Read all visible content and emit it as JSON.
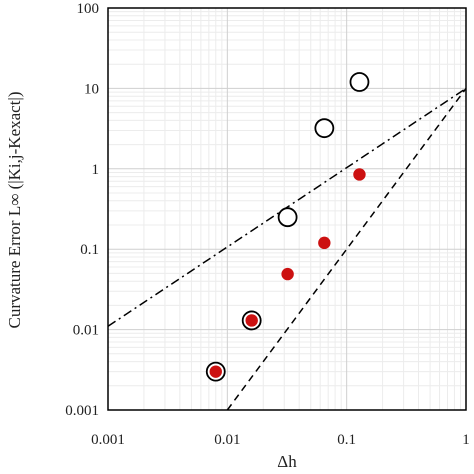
{
  "chart_data": {
    "type": "scatter",
    "title": "",
    "xlabel": "Δh",
    "ylabel": "Curvature Error L∞ (|Ki,j-Kexact|)",
    "xscale": "log",
    "yscale": "log",
    "xlim": [
      0.001,
      1
    ],
    "ylim": [
      0.001,
      100
    ],
    "x_tick_labels": [
      "0.001",
      "0.01",
      "0.1",
      "1"
    ],
    "y_tick_labels": [
      "0.001",
      "0.01",
      "0.1",
      "1",
      "10",
      "100"
    ],
    "grid": true,
    "legend": "none",
    "series": [
      {
        "marker": "open-circle",
        "color": "#000000",
        "points": [
          {
            "x": 0.008,
            "y": 0.003
          },
          {
            "x": 0.016,
            "y": 0.013
          },
          {
            "x": 0.032,
            "y": 0.25
          },
          {
            "x": 0.065,
            "y": 3.2
          },
          {
            "x": 0.128,
            "y": 12
          }
        ]
      },
      {
        "marker": "filled-circle",
        "color": "#cc1111",
        "points": [
          {
            "x": 0.008,
            "y": 0.003
          },
          {
            "x": 0.016,
            "y": 0.013
          },
          {
            "x": 0.032,
            "y": 0.049
          },
          {
            "x": 0.065,
            "y": 0.12
          },
          {
            "x": 0.128,
            "y": 0.85
          }
        ]
      }
    ],
    "reference_lines": [
      {
        "style": "dash-dot",
        "color": "#000000",
        "points": [
          {
            "x": 0.001,
            "y": 0.011
          },
          {
            "x": 1,
            "y": 10
          }
        ]
      },
      {
        "style": "dashed",
        "color": "#000000",
        "points": [
          {
            "x": 0.01,
            "y": 0.001
          },
          {
            "x": 1,
            "y": 10
          }
        ]
      }
    ]
  }
}
